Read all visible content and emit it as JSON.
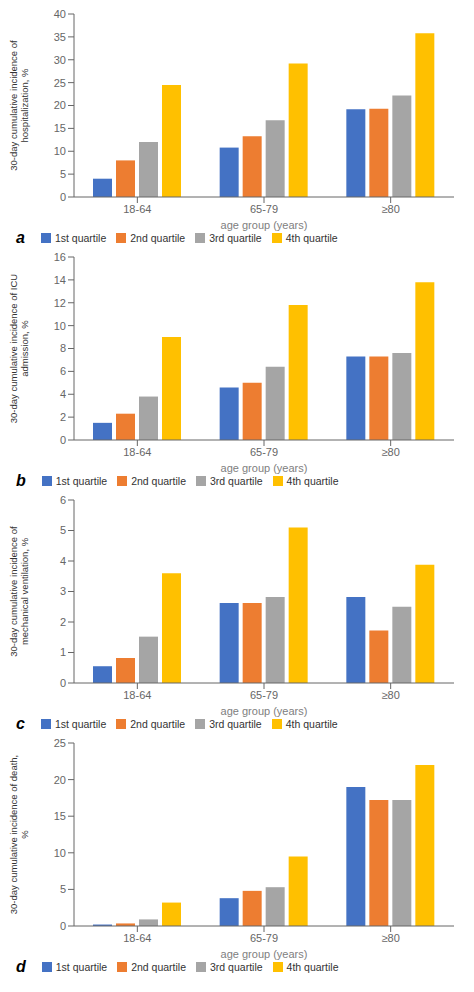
{
  "chart_data": [
    {
      "type": "bar",
      "title": "a",
      "xlabel": "age group (years)",
      "ylabel": "30-day cumulative incidence of\nhospitalization, %",
      "categories": [
        "18-64",
        "65-79",
        "≥80"
      ],
      "series": [
        {
          "name": "1st quartile",
          "color": "#4472c4",
          "values": [
            4.0,
            10.8,
            19.2
          ]
        },
        {
          "name": "2nd quartile",
          "color": "#ed7d31",
          "values": [
            8.0,
            13.3,
            19.3
          ]
        },
        {
          "name": "3rd quartile",
          "color": "#a5a5a5",
          "values": [
            12.0,
            16.8,
            22.2
          ]
        },
        {
          "name": "4th quartile",
          "color": "#ffc000",
          "values": [
            24.5,
            29.2,
            35.8
          ]
        }
      ],
      "ylim": [
        0,
        40
      ],
      "yticks": [
        0,
        5,
        10,
        15,
        20,
        25,
        30,
        35,
        40
      ],
      "grid": false,
      "legend": "bottom"
    },
    {
      "type": "bar",
      "title": "b",
      "xlabel": "age group (years)",
      "ylabel": "30-day cumulative incidence of ICU\nadmission, %",
      "categories": [
        "18-64",
        "65-79",
        "≥80"
      ],
      "series": [
        {
          "name": "1st quartile",
          "color": "#4472c4",
          "values": [
            1.5,
            4.6,
            7.3
          ]
        },
        {
          "name": "2nd quartile",
          "color": "#ed7d31",
          "values": [
            2.3,
            5.0,
            7.3
          ]
        },
        {
          "name": "3rd quartile",
          "color": "#a5a5a5",
          "values": [
            3.8,
            6.4,
            7.6
          ]
        },
        {
          "name": "4th quartile",
          "color": "#ffc000",
          "values": [
            9.0,
            11.8,
            13.8
          ]
        }
      ],
      "ylim": [
        0,
        16
      ],
      "yticks": [
        0,
        2,
        4,
        6,
        8,
        10,
        12,
        14,
        16
      ],
      "grid": false,
      "legend": "bottom"
    },
    {
      "type": "bar",
      "title": "c",
      "xlabel": "age group (years)",
      "ylabel": "30-day cumulative incidence of\nmechanical ventilation, %",
      "categories": [
        "18-64",
        "65-79",
        "≥80"
      ],
      "series": [
        {
          "name": "1st quartile",
          "color": "#4472c4",
          "values": [
            0.55,
            2.62,
            2.82
          ]
        },
        {
          "name": "2nd quartile",
          "color": "#ed7d31",
          "values": [
            0.82,
            2.62,
            1.72
          ]
        },
        {
          "name": "3rd quartile",
          "color": "#a5a5a5",
          "values": [
            1.52,
            2.82,
            2.5
          ]
        },
        {
          "name": "4th quartile",
          "color": "#ffc000",
          "values": [
            3.6,
            5.1,
            3.88
          ]
        }
      ],
      "ylim": [
        0,
        6
      ],
      "yticks": [
        0,
        1,
        2,
        3,
        4,
        5,
        6
      ],
      "grid": false,
      "legend": "bottom"
    },
    {
      "type": "bar",
      "title": "d",
      "xlabel": "age group (years)",
      "ylabel": "30-day cumulative incidence of death,\n%",
      "categories": [
        "18-64",
        "65-79",
        "≥80"
      ],
      "series": [
        {
          "name": "1st quartile",
          "color": "#4472c4",
          "values": [
            0.2,
            3.8,
            19.0
          ]
        },
        {
          "name": "2nd quartile",
          "color": "#ed7d31",
          "values": [
            0.35,
            4.8,
            17.2
          ]
        },
        {
          "name": "3rd quartile",
          "color": "#a5a5a5",
          "values": [
            0.9,
            5.3,
            17.2
          ]
        },
        {
          "name": "4th quartile",
          "color": "#ffc000",
          "values": [
            3.2,
            9.5,
            22.0
          ]
        }
      ],
      "ylim": [
        0,
        25
      ],
      "yticks": [
        0,
        5,
        10,
        15,
        20,
        25
      ],
      "grid": false,
      "legend": "bottom"
    }
  ]
}
